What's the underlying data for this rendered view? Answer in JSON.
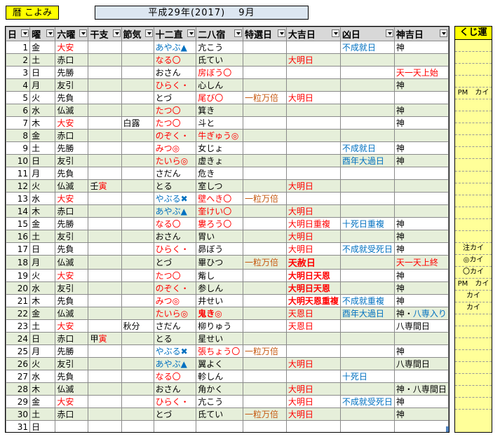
{
  "title": "暦 こよみ",
  "header": "平成29年(2017)　 9月",
  "columns": [
    "日",
    "曜",
    "六曜",
    "干支",
    "節気",
    "十二直",
    "二八宿",
    "特選日",
    "大吉日",
    "凶日",
    "神吉日"
  ],
  "side_header": "くじ運",
  "rows": [
    {
      "d": "1",
      "w": "金",
      "r": "大安",
      "r_c": "red",
      "k": "",
      "s": "",
      "j": "あやぶ▲",
      "j_c": "blue",
      "n": "亢こう",
      "n_c": "",
      "t": "",
      "t_c": "",
      "dk": "",
      "dk_c": "",
      "ky": "不成就日",
      "ky_c": "blue",
      "kk": "神",
      "kk_c": ""
    },
    {
      "d": "2",
      "w": "土",
      "r": "赤口",
      "r_c": "",
      "k": "",
      "s": "",
      "j": "なる〇",
      "j_c": "red",
      "n": "氐てい",
      "n_c": "",
      "t": "",
      "t_c": "",
      "dk": "大明日",
      "dk_c": "red",
      "ky": "",
      "ky_c": "",
      "kk": "",
      "kk_c": ""
    },
    {
      "d": "3",
      "w": "日",
      "r": "先勝",
      "r_c": "",
      "k": "",
      "s": "",
      "j": "おさん",
      "j_c": "",
      "n": "房ぼう〇",
      "n_c": "red",
      "t": "",
      "t_c": "",
      "dk": "",
      "dk_c": "",
      "ky": "",
      "ky_c": "",
      "kk": "天一天上始",
      "kk_c": "red"
    },
    {
      "d": "4",
      "w": "月",
      "r": "友引",
      "r_c": "",
      "k": "",
      "s": "",
      "j": "ひらく・",
      "j_c": "red",
      "n": "心しん",
      "n_c": "",
      "t": "",
      "t_c": "",
      "dk": "",
      "dk_c": "",
      "ky": "",
      "ky_c": "",
      "kk": "神",
      "kk_c": ""
    },
    {
      "d": "5",
      "w": "火",
      "r": "先負",
      "r_c": "",
      "k": "",
      "s": "",
      "j": "とづ",
      "j_c": "",
      "n": "尾び〇",
      "n_c": "red",
      "t": "一粒万倍",
      "t_c": "orange",
      "dk": "大明日",
      "dk_c": "red",
      "ky": "",
      "ky_c": "",
      "kk": "",
      "kk_c": ""
    },
    {
      "d": "6",
      "w": "水",
      "r": "仏滅",
      "r_c": "",
      "k": "",
      "s": "",
      "j": "たつ〇",
      "j_c": "red",
      "n": "箕き",
      "n_c": "",
      "t": "",
      "t_c": "",
      "dk": "",
      "dk_c": "",
      "ky": "",
      "ky_c": "",
      "kk": "神",
      "kk_c": ""
    },
    {
      "d": "7",
      "w": "木",
      "r": "大安",
      "r_c": "red",
      "k": "",
      "s": "白露",
      "j": "たつ〇",
      "j_c": "red",
      "n": "斗と",
      "n_c": "",
      "t": "",
      "t_c": "",
      "dk": "",
      "dk_c": "",
      "ky": "",
      "ky_c": "",
      "kk": "神",
      "kk_c": ""
    },
    {
      "d": "8",
      "w": "金",
      "r": "赤口",
      "r_c": "",
      "k": "",
      "s": "",
      "j": "のぞく・",
      "j_c": "red",
      "n": "牛ぎゅう◎",
      "n_c": "red",
      "t": "",
      "t_c": "",
      "dk": "",
      "dk_c": "",
      "ky": "",
      "ky_c": "",
      "kk": "",
      "kk_c": ""
    },
    {
      "d": "9",
      "w": "土",
      "r": "先勝",
      "r_c": "",
      "k": "",
      "s": "",
      "j": "みつ◎",
      "j_c": "red",
      "n": "女じょ",
      "n_c": "",
      "t": "",
      "t_c": "",
      "dk": "",
      "dk_c": "",
      "ky": "不成就日",
      "ky_c": "blue",
      "kk": "神",
      "kk_c": ""
    },
    {
      "d": "10",
      "w": "日",
      "r": "友引",
      "r_c": "",
      "k": "",
      "s": "",
      "j": "たいら◎",
      "j_c": "red",
      "n": "虚きょ",
      "n_c": "",
      "t": "",
      "t_c": "",
      "dk": "",
      "dk_c": "",
      "ky": "酉年大過日",
      "ky_c": "blue",
      "kk": "神",
      "kk_c": ""
    },
    {
      "d": "11",
      "w": "月",
      "r": "先負",
      "r_c": "",
      "k": "",
      "s": "",
      "j": "さだん",
      "j_c": "",
      "n": "危き",
      "n_c": "",
      "t": "",
      "t_c": "",
      "dk": "",
      "dk_c": "",
      "ky": "",
      "ky_c": "",
      "kk": "",
      "kk_c": ""
    },
    {
      "d": "12",
      "w": "火",
      "r": "仏滅",
      "r_c": "",
      "k": "壬寅",
      "s": "",
      "j": "とる",
      "j_c": "",
      "n": "室しつ",
      "n_c": "",
      "t": "",
      "t_c": "",
      "dk": "大明日",
      "dk_c": "red",
      "ky": "",
      "ky_c": "",
      "kk": "",
      "kk_c": ""
    },
    {
      "d": "13",
      "w": "水",
      "r": "大安",
      "r_c": "red",
      "k": "",
      "s": "",
      "j": "やぶる✖",
      "j_c": "blue",
      "n": "壁へき〇",
      "n_c": "red",
      "t": "一粒万倍",
      "t_c": "orange",
      "dk": "",
      "dk_c": "",
      "ky": "",
      "ky_c": "",
      "kk": "",
      "kk_c": ""
    },
    {
      "d": "14",
      "w": "木",
      "r": "赤口",
      "r_c": "",
      "k": "",
      "s": "",
      "j": "あやぶ▲",
      "j_c": "blue",
      "n": "奎けい〇",
      "n_c": "red",
      "t": "",
      "t_c": "",
      "dk": "大明日",
      "dk_c": "red",
      "ky": "",
      "ky_c": "",
      "kk": "",
      "kk_c": ""
    },
    {
      "d": "15",
      "w": "金",
      "r": "先勝",
      "r_c": "",
      "k": "",
      "s": "",
      "j": "なる〇",
      "j_c": "red",
      "n": "婁ろう〇",
      "n_c": "red",
      "t": "",
      "t_c": "",
      "dk": "大明日重複",
      "dk_c": "red",
      "ky": "十死日重複",
      "ky_c": "blue",
      "kk": "神",
      "kk_c": ""
    },
    {
      "d": "16",
      "w": "土",
      "r": "友引",
      "r_c": "",
      "k": "",
      "s": "",
      "j": "おさん",
      "j_c": "",
      "n": "胃い",
      "n_c": "",
      "t": "",
      "t_c": "",
      "dk": "大明日",
      "dk_c": "red",
      "ky": "",
      "ky_c": "",
      "kk": "神",
      "kk_c": ""
    },
    {
      "d": "17",
      "w": "日",
      "r": "先負",
      "r_c": "",
      "k": "",
      "s": "",
      "j": "ひらく・",
      "j_c": "red",
      "n": "昴ぼう",
      "n_c": "",
      "t": "",
      "t_c": "",
      "dk": "大明日",
      "dk_c": "red",
      "ky": "不成就受死日",
      "ky_c": "blue",
      "kk": "神",
      "kk_c": ""
    },
    {
      "d": "18",
      "w": "月",
      "r": "仏滅",
      "r_c": "",
      "k": "",
      "s": "",
      "j": "とづ",
      "j_c": "",
      "n": "畢ひつ",
      "n_c": "",
      "t": "一粒万倍",
      "t_c": "orange",
      "dk": "天赦日",
      "dk_c": "red bold big",
      "ky": "",
      "ky_c": "",
      "kk": "天一天上終",
      "kk_c": "red"
    },
    {
      "d": "19",
      "w": "火",
      "r": "大安",
      "r_c": "red",
      "k": "",
      "s": "",
      "j": "たつ〇",
      "j_c": "red",
      "n": "觜し",
      "n_c": "",
      "t": "",
      "t_c": "",
      "dk": "大明日天恩",
      "dk_c": "red bold",
      "ky": "",
      "ky_c": "",
      "kk": "神",
      "kk_c": ""
    },
    {
      "d": "20",
      "w": "水",
      "r": "友引",
      "r_c": "",
      "k": "",
      "s": "",
      "j": "のぞく・",
      "j_c": "red",
      "n": "参しん",
      "n_c": "",
      "t": "",
      "t_c": "",
      "dk": "大明日天恩",
      "dk_c": "red bold",
      "ky": "",
      "ky_c": "",
      "kk": "神",
      "kk_c": ""
    },
    {
      "d": "21",
      "w": "木",
      "r": "先負",
      "r_c": "",
      "k": "",
      "s": "",
      "j": "みつ◎",
      "j_c": "red",
      "n": "井せい",
      "n_c": "",
      "t": "",
      "t_c": "",
      "dk": "大明天恩重複",
      "dk_c": "red bold",
      "ky": "不成就重複",
      "ky_c": "blue",
      "kk": "神",
      "kk_c": ""
    },
    {
      "d": "22",
      "w": "金",
      "r": "仏滅",
      "r_c": "",
      "k": "",
      "s": "",
      "j": "たいら◎",
      "j_c": "red",
      "n": "鬼き◎",
      "n_c": "red bold",
      "t": "",
      "t_c": "",
      "dk": "天恩日",
      "dk_c": "red",
      "ky": "酉年大過日",
      "ky_c": "blue",
      "kk": "神・八専入り",
      "kk_c": "mix"
    },
    {
      "d": "23",
      "w": "土",
      "r": "大安",
      "r_c": "red",
      "k": "",
      "s": "秋分",
      "j": "さだん",
      "j_c": "",
      "n": "柳りゅう",
      "n_c": "",
      "t": "",
      "t_c": "",
      "dk": "天恩日",
      "dk_c": "red",
      "ky": "",
      "ky_c": "",
      "kk": "八専間日",
      "kk_c": ""
    },
    {
      "d": "24",
      "w": "日",
      "r": "赤口",
      "r_c": "",
      "k": "甲寅",
      "s": "",
      "j": "とる",
      "j_c": "",
      "n": "星せい",
      "n_c": "",
      "t": "",
      "t_c": "",
      "dk": "",
      "dk_c": "",
      "ky": "",
      "ky_c": "",
      "kk": "",
      "kk_c": ""
    },
    {
      "d": "25",
      "w": "月",
      "r": "先勝",
      "r_c": "",
      "k": "",
      "s": "",
      "j": "やぶる✖",
      "j_c": "blue",
      "n": "張ちょう〇",
      "n_c": "red",
      "t": "一粒万倍",
      "t_c": "orange",
      "dk": "",
      "dk_c": "",
      "ky": "",
      "ky_c": "",
      "kk": "神",
      "kk_c": ""
    },
    {
      "d": "26",
      "w": "火",
      "r": "友引",
      "r_c": "",
      "k": "",
      "s": "",
      "j": "あやぶ▲",
      "j_c": "blue",
      "n": "翼よく",
      "n_c": "",
      "t": "",
      "t_c": "",
      "dk": "大明日",
      "dk_c": "red",
      "ky": "",
      "ky_c": "",
      "kk": "八専間日",
      "kk_c": ""
    },
    {
      "d": "27",
      "w": "水",
      "r": "先負",
      "r_c": "",
      "k": "",
      "s": "",
      "j": "なる〇",
      "j_c": "red",
      "n": "軫しん",
      "n_c": "",
      "t": "",
      "t_c": "",
      "dk": "",
      "dk_c": "",
      "ky": "十死日",
      "ky_c": "blue",
      "kk": "",
      "kk_c": ""
    },
    {
      "d": "28",
      "w": "木",
      "r": "仏滅",
      "r_c": "",
      "k": "",
      "s": "",
      "j": "おさん",
      "j_c": "",
      "n": "角かく",
      "n_c": "",
      "t": "",
      "t_c": "",
      "dk": "大明日",
      "dk_c": "red",
      "ky": "",
      "ky_c": "",
      "kk": "神・八専間日",
      "kk_c": ""
    },
    {
      "d": "29",
      "w": "金",
      "r": "大安",
      "r_c": "red",
      "k": "",
      "s": "",
      "j": "ひらく・",
      "j_c": "red",
      "n": "亢こう",
      "n_c": "",
      "t": "",
      "t_c": "",
      "dk": "大明日",
      "dk_c": "red",
      "ky": "不成就受死日",
      "ky_c": "blue",
      "kk": "神",
      "kk_c": ""
    },
    {
      "d": "30",
      "w": "土",
      "r": "赤口",
      "r_c": "",
      "k": "",
      "s": "",
      "j": "とづ",
      "j_c": "",
      "n": "氐てい",
      "n_c": "",
      "t": "一粒万倍",
      "t_c": "orange",
      "dk": "大明日",
      "dk_c": "red",
      "ky": "",
      "ky_c": "",
      "kk": "神",
      "kk_c": ""
    },
    {
      "d": "31",
      "w": "日",
      "r": "",
      "r_c": "",
      "k": "",
      "s": "",
      "j": "",
      "j_c": "",
      "n": "",
      "n_c": "",
      "t": "",
      "t_c": "",
      "dk": "",
      "dk_c": "",
      "ky": "",
      "ky_c": "",
      "kk": "",
      "kk_c": ""
    }
  ],
  "side": [
    "",
    "",
    "",
    "",
    "PM　カイ",
    "",
    "",
    "",
    "",
    "",
    "",
    "",
    "",
    "",
    "",
    "",
    "",
    "注カイ",
    "◎カイ",
    "〇カイ",
    "PM　カイ",
    "カイ",
    "カイ",
    "",
    "",
    "",
    "",
    "",
    "",
    "",
    ""
  ],
  "colors": {
    "accent_yellow": "#ffff00",
    "header_blue": "#dce6f1",
    "even_row": "#e6efda",
    "red": "#ff0000",
    "blue": "#0070c0",
    "orange": "#c65911"
  }
}
